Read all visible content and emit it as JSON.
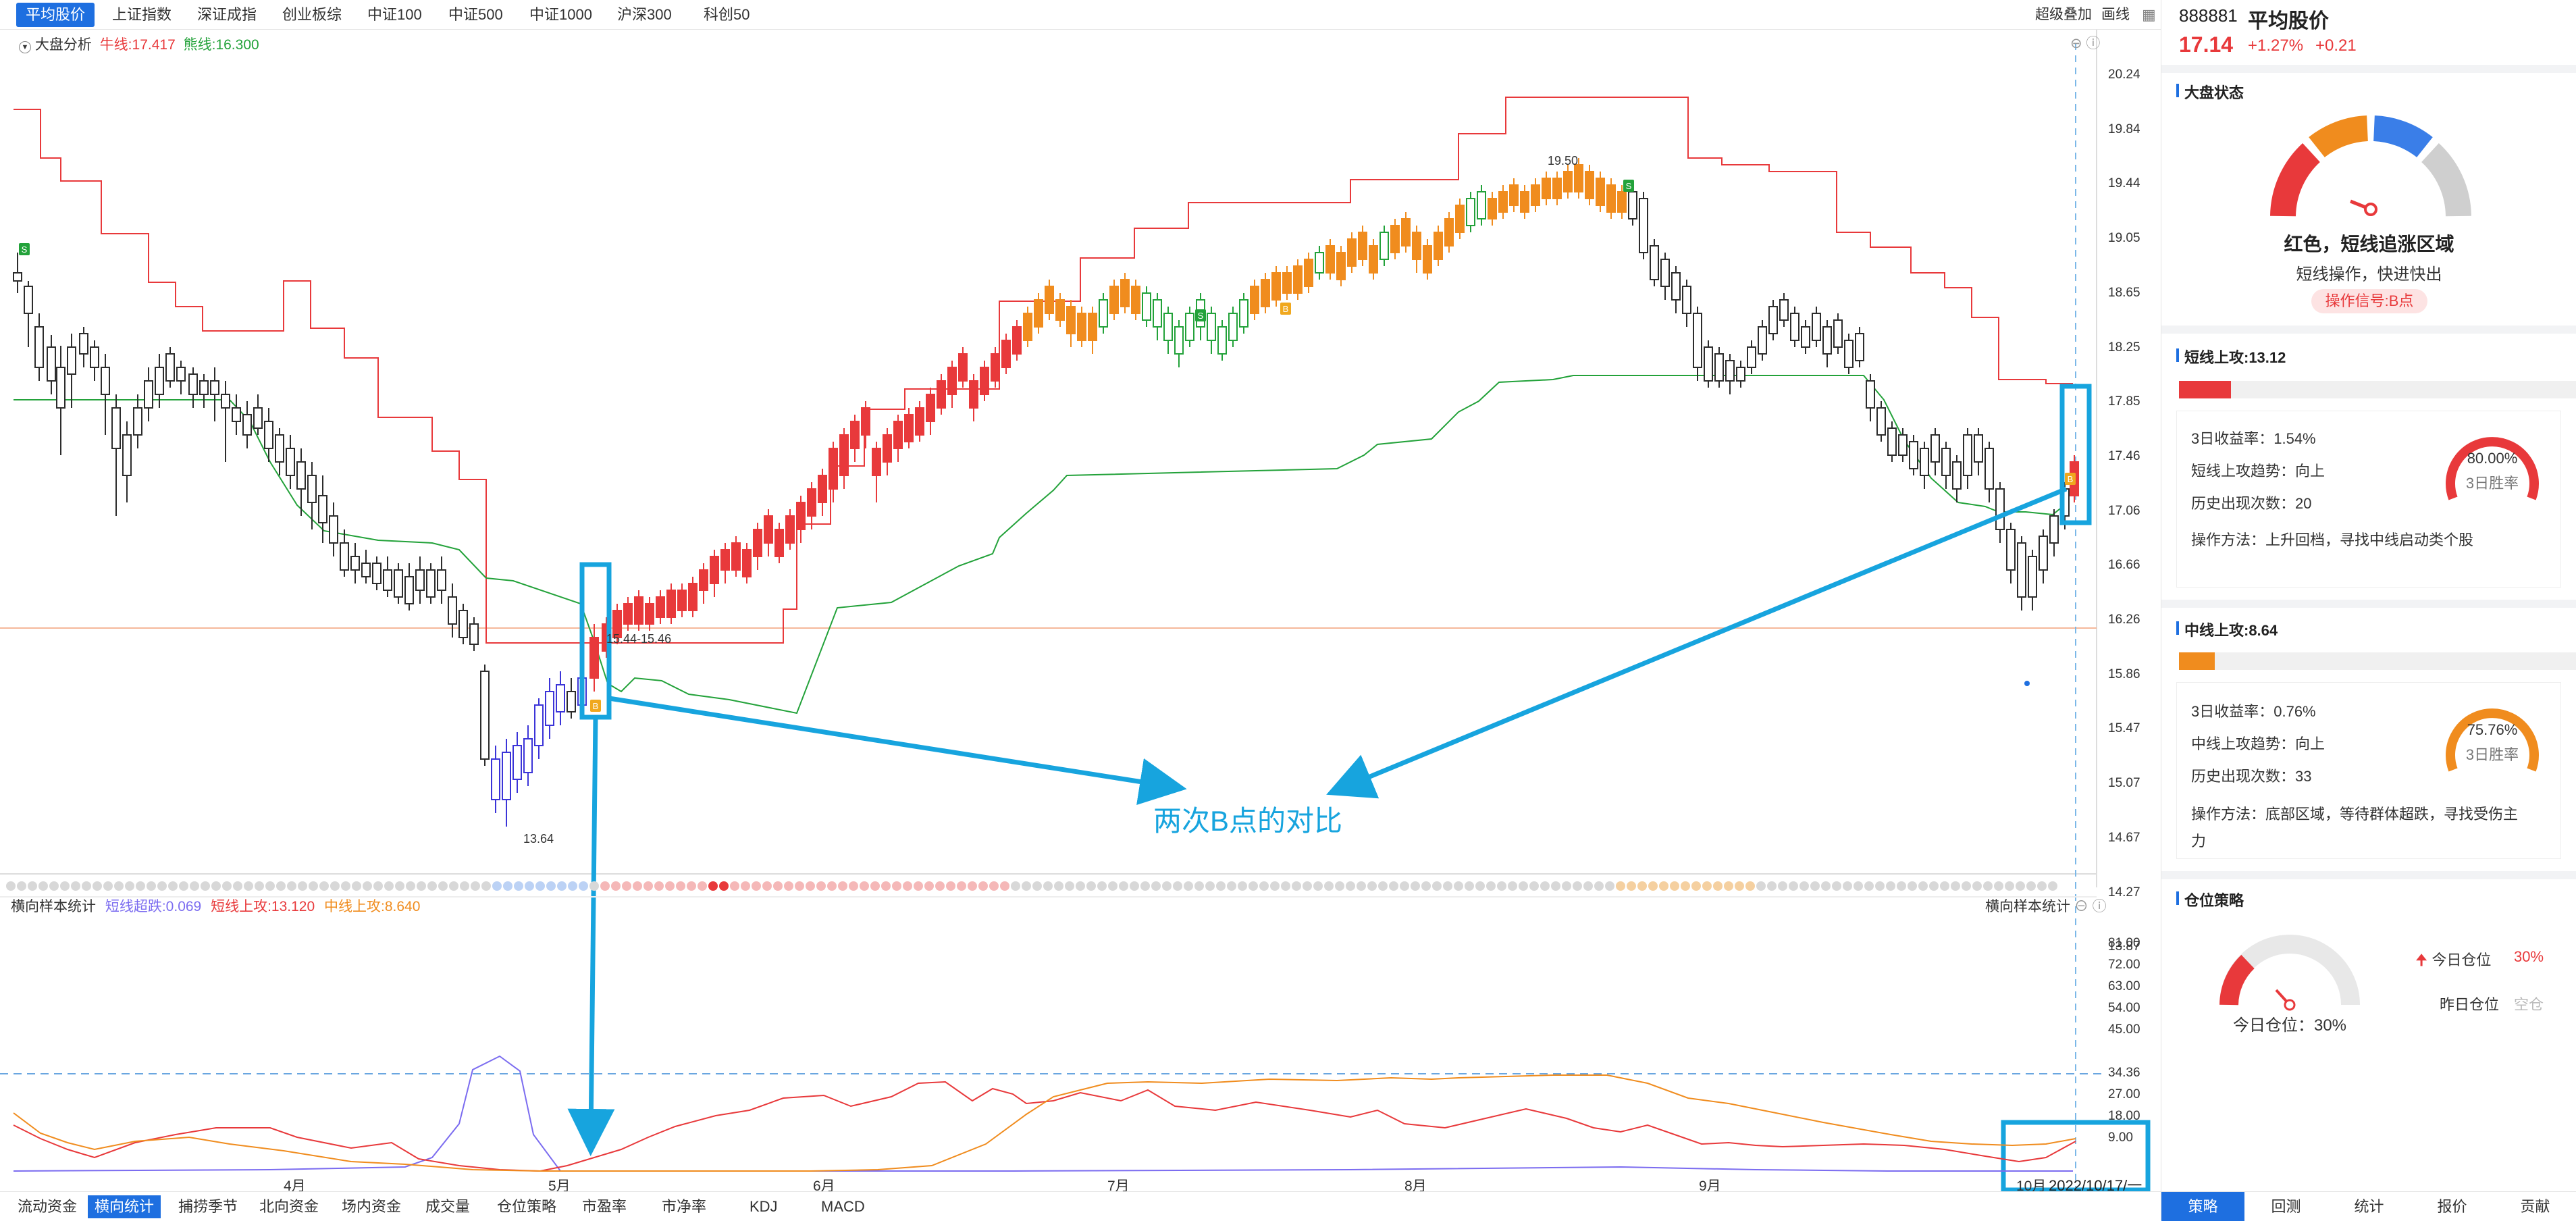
{
  "top_tabs": [
    "平均股价",
    "上证指数",
    "深证成指",
    "创业板综",
    "中证100",
    "中证500",
    "中证1000",
    "沪深300",
    "科创50"
  ],
  "top_right": {
    "overlay": "超级叠加",
    "draw": "画线"
  },
  "main_legend": {
    "name": "大盘分析",
    "bull": "牛线:17.417",
    "bear": "熊线:16.300"
  },
  "price_axis": [
    "20.24",
    "19.84",
    "19.44",
    "19.05",
    "18.65",
    "18.25",
    "17.85",
    "17.46",
    "17.06",
    "16.66",
    "16.26",
    "15.86",
    "15.47",
    "15.07",
    "14.67",
    "14.27",
    "13.87"
  ],
  "annotations": {
    "high": "19.50",
    "low": "13.64",
    "level": "15.44-15.46",
    "comparison": "两次B点的对比",
    "b_marker": "B",
    "s_marker": "S"
  },
  "sub_legend": {
    "name": "横向样本统计",
    "s1": "短线超跌:0.069",
    "s2": "短线上攻:13.120",
    "s3": "中线上攻:8.640"
  },
  "sub_legend_right": "横向样本统计",
  "sub_axis": [
    "81.00",
    "72.00",
    "63.00",
    "54.00",
    "45.00",
    "34.36",
    "27.00",
    "18.00",
    "9.00"
  ],
  "months": [
    "4月",
    "5月",
    "6月",
    "7月",
    "8月",
    "9月",
    "10月"
  ],
  "date_box": "2022/10/17/一",
  "bottom_tabs": [
    "流动资金",
    "横向统计",
    "捕捞季节",
    "北向资金",
    "场内资金",
    "成交量",
    "仓位策略",
    "市盈率",
    "市净率",
    "KDJ",
    "MACD"
  ],
  "stock": {
    "code": "888881",
    "name": "平均股价",
    "price": "17.14",
    "pct": "+1.27%",
    "change": "+0.21"
  },
  "market_state": {
    "title": "大盘状态",
    "status": "红色，短线追涨区域",
    "advice": "短线操作，快进快出",
    "signal": "操作信号:B点"
  },
  "short_attack": {
    "title": "短线上攻:13.12",
    "progress": 0.13,
    "ret": "3日收益率：1.54%",
    "trend": "短线上攻趋势：向上",
    "count": "历史出现次数：20",
    "method": "操作方法：上升回档，寻找中线启动类个股",
    "win_rate": "80.00%",
    "win_label": "3日胜率"
  },
  "mid_attack": {
    "title": "中线上攻:8.64",
    "progress": 0.09,
    "ret": "3日收益率：0.76%",
    "trend": "中线上攻趋势：向上",
    "count": "历史出现次数：33",
    "method_l1": "操作方法：底部区域，等待群体超跌，寻找受伤主",
    "method_l2": "力",
    "win_rate": "75.76%",
    "win_label": "3日胜率"
  },
  "position": {
    "title": "仓位策略",
    "today_label": "今日仓位",
    "today_value": "30%",
    "yesterday_label": "昨日仓位",
    "yesterday_value": "空仓",
    "gauge_text": "今日仓位：30%"
  },
  "right_tabs": [
    "策略",
    "回测",
    "统计",
    "报价",
    "贡献"
  ],
  "colors": {
    "accent": "#1e6fe0",
    "up": "#e8393b",
    "down": "#2c2c2c",
    "orange": "#f08c1e",
    "green": "#23a23a",
    "cyan": "#17a4de",
    "purple": "#7b6cf0"
  }
}
